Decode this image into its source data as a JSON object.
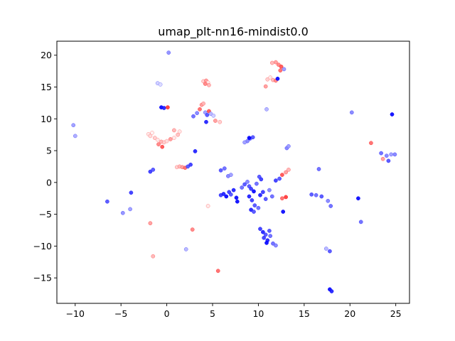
{
  "chart_data": {
    "type": "scatter",
    "title": "umap_plt-nn16-mindist0.0",
    "xlabel": "",
    "ylabel": "",
    "xlim": [
      -12,
      26.5
    ],
    "ylim": [
      -19,
      22.2
    ],
    "xticks": [
      -10,
      -5,
      0,
      5,
      10,
      15,
      20,
      25
    ],
    "yticks": [
      -15,
      -10,
      -5,
      0,
      5,
      10,
      15,
      20
    ],
    "grid": false,
    "legend": "none",
    "color_scale": {
      "low": "#0000ff",
      "mid": "#ffffff",
      "high": "#ff0000"
    },
    "points": [
      {
        "x": -10.2,
        "y": 9.0,
        "c": 0.6
      },
      {
        "x": -10.0,
        "y": 7.3,
        "c": 0.65
      },
      {
        "x": -6.5,
        "y": -3.0,
        "c": 0.3
      },
      {
        "x": -4.8,
        "y": -4.8,
        "c": 0.55
      },
      {
        "x": -4.0,
        "y": -4.2,
        "c": 0.6
      },
      {
        "x": -3.9,
        "y": -1.6,
        "c": 0.2
      },
      {
        "x": -1.8,
        "y": -6.4,
        "c": -0.6
      },
      {
        "x": -1.5,
        "y": -11.6,
        "c": -0.7
      },
      {
        "x": -1.8,
        "y": 1.7,
        "c": 0.2
      },
      {
        "x": -1.5,
        "y": 2.0,
        "c": 0.3
      },
      {
        "x": -1.0,
        "y": 15.6,
        "c": 0.8
      },
      {
        "x": -0.7,
        "y": 15.4,
        "c": 0.85
      },
      {
        "x": -0.6,
        "y": 11.8,
        "c": 0.0
      },
      {
        "x": -0.3,
        "y": 11.7,
        "c": 0.1
      },
      {
        "x": 0.1,
        "y": 11.8,
        "c": -0.2
      },
      {
        "x": 0.2,
        "y": 20.4,
        "c": 0.55
      },
      {
        "x": -2.0,
        "y": 7.6,
        "c": -0.9
      },
      {
        "x": -1.8,
        "y": 7.3,
        "c": -0.85
      },
      {
        "x": -1.6,
        "y": 7.8,
        "c": -0.95
      },
      {
        "x": -1.3,
        "y": 7.0,
        "c": -0.8
      },
      {
        "x": -1.0,
        "y": 6.7,
        "c": -0.9
      },
      {
        "x": -0.6,
        "y": 6.4,
        "c": -0.7
      },
      {
        "x": -0.3,
        "y": 6.3,
        "c": -0.8
      },
      {
        "x": 0.0,
        "y": 6.5,
        "c": -0.85
      },
      {
        "x": 0.4,
        "y": 6.8,
        "c": -0.6
      },
      {
        "x": 0.8,
        "y": 7.0,
        "c": -0.9
      },
      {
        "x": 1.2,
        "y": 7.5,
        "c": -0.75
      },
      {
        "x": 1.4,
        "y": 8.0,
        "c": -0.9
      },
      {
        "x": 0.8,
        "y": 8.2,
        "c": -0.7
      },
      {
        "x": -0.9,
        "y": 6.0,
        "c": -0.5
      },
      {
        "x": -0.5,
        "y": 5.6,
        "c": -0.3
      },
      {
        "x": 1.1,
        "y": 2.4,
        "c": -0.8
      },
      {
        "x": 1.4,
        "y": 2.5,
        "c": -0.7
      },
      {
        "x": 1.7,
        "y": 2.4,
        "c": -0.6
      },
      {
        "x": 2.0,
        "y": 2.3,
        "c": -0.4
      },
      {
        "x": 2.3,
        "y": 2.5,
        "c": 0.3
      },
      {
        "x": 2.6,
        "y": 2.8,
        "c": 0.2
      },
      {
        "x": 3.1,
        "y": 4.9,
        "c": 0.1
      },
      {
        "x": 2.8,
        "y": -7.4,
        "c": -0.5
      },
      {
        "x": 2.1,
        "y": -10.5,
        "c": 0.7
      },
      {
        "x": 5.6,
        "y": -13.9,
        "c": -0.4
      },
      {
        "x": 4.5,
        "y": -3.7,
        "c": -0.9
      },
      {
        "x": 2.9,
        "y": 10.4,
        "c": 0.4
      },
      {
        "x": 3.3,
        "y": 10.9,
        "c": 0.5
      },
      {
        "x": 3.6,
        "y": 11.5,
        "c": -0.4
      },
      {
        "x": 3.8,
        "y": 12.2,
        "c": -0.6
      },
      {
        "x": 4.0,
        "y": 12.4,
        "c": -0.7
      },
      {
        "x": 4.2,
        "y": 11.0,
        "c": 0.6
      },
      {
        "x": 4.4,
        "y": 10.6,
        "c": 0.3
      },
      {
        "x": 4.6,
        "y": 11.2,
        "c": -0.3
      },
      {
        "x": 4.8,
        "y": 10.8,
        "c": 0.7
      },
      {
        "x": 5.1,
        "y": 10.5,
        "c": 0.8
      },
      {
        "x": 4.3,
        "y": 9.5,
        "c": 0.1
      },
      {
        "x": 5.3,
        "y": 9.7,
        "c": -0.6
      },
      {
        "x": 5.8,
        "y": 9.5,
        "c": -0.8
      },
      {
        "x": 4.0,
        "y": 15.9,
        "c": -0.8
      },
      {
        "x": 4.3,
        "y": 16.0,
        "c": -0.6
      },
      {
        "x": 4.5,
        "y": 15.7,
        "c": -0.9
      },
      {
        "x": 4.2,
        "y": 15.5,
        "c": -0.5
      },
      {
        "x": 4.6,
        "y": 15.3,
        "c": -0.7
      },
      {
        "x": 5.9,
        "y": 1.9,
        "c": 0.3
      },
      {
        "x": 6.3,
        "y": 2.2,
        "c": 0.4
      },
      {
        "x": 6.7,
        "y": 1.0,
        "c": 0.5
      },
      {
        "x": 7.0,
        "y": 1.2,
        "c": 0.6
      },
      {
        "x": 5.9,
        "y": -2.0,
        "c": 0.2
      },
      {
        "x": 6.2,
        "y": -1.8,
        "c": 0.1
      },
      {
        "x": 6.5,
        "y": -2.2,
        "c": 0.0
      },
      {
        "x": 6.8,
        "y": -1.5,
        "c": 0.2
      },
      {
        "x": 7.0,
        "y": -1.9,
        "c": 0.3
      },
      {
        "x": 7.3,
        "y": -1.2,
        "c": 0.1
      },
      {
        "x": 7.6,
        "y": -2.4,
        "c": 0.0
      },
      {
        "x": 7.7,
        "y": -3.0,
        "c": 0.0
      },
      {
        "x": 8.2,
        "y": -0.8,
        "c": 0.4
      },
      {
        "x": 8.5,
        "y": -0.3,
        "c": 0.3
      },
      {
        "x": 8.8,
        "y": 0.1,
        "c": 0.5
      },
      {
        "x": 9.0,
        "y": -0.6,
        "c": 0.3
      },
      {
        "x": 9.2,
        "y": -1.0,
        "c": 0.2
      },
      {
        "x": 9.5,
        "y": -1.4,
        "c": 0.0
      },
      {
        "x": 9.8,
        "y": -0.2,
        "c": 0.4
      },
      {
        "x": 10.1,
        "y": 0.9,
        "c": 0.3
      },
      {
        "x": 10.3,
        "y": 0.5,
        "c": 0.2
      },
      {
        "x": 9.0,
        "y": -2.2,
        "c": 0.1
      },
      {
        "x": 9.3,
        "y": -2.8,
        "c": 0.2
      },
      {
        "x": 9.6,
        "y": -3.6,
        "c": 0.3
      },
      {
        "x": 9.2,
        "y": -4.3,
        "c": 0.1
      },
      {
        "x": 9.5,
        "y": -4.6,
        "c": 0.3
      },
      {
        "x": 10.0,
        "y": -4.0,
        "c": 0.4
      },
      {
        "x": 10.2,
        "y": -2.0,
        "c": 0.1
      },
      {
        "x": 10.5,
        "y": -1.5,
        "c": 0.2
      },
      {
        "x": 10.8,
        "y": -2.6,
        "c": 0.3
      },
      {
        "x": 11.2,
        "y": -1.2,
        "c": 0.5
      },
      {
        "x": 11.5,
        "y": -2.2,
        "c": 0.4
      },
      {
        "x": 11.9,
        "y": 0.3,
        "c": 0.2
      },
      {
        "x": 12.3,
        "y": 0.6,
        "c": 0.3
      },
      {
        "x": 12.6,
        "y": 1.2,
        "c": -0.3
      },
      {
        "x": 13.0,
        "y": 1.6,
        "c": -0.6
      },
      {
        "x": 13.3,
        "y": 2.0,
        "c": -0.7
      },
      {
        "x": 12.7,
        "y": -4.6,
        "c": 0.0
      },
      {
        "x": 12.6,
        "y": -2.5,
        "c": -0.4
      },
      {
        "x": 13.0,
        "y": -2.3,
        "c": -0.2
      },
      {
        "x": 10.2,
        "y": -7.3,
        "c": 0.2
      },
      {
        "x": 10.5,
        "y": -7.8,
        "c": 0.1
      },
      {
        "x": 10.8,
        "y": -8.2,
        "c": 0.3
      },
      {
        "x": 10.6,
        "y": -8.7,
        "c": 0.2
      },
      {
        "x": 11.0,
        "y": -9.1,
        "c": 0.1
      },
      {
        "x": 11.3,
        "y": -8.4,
        "c": 0.4
      },
      {
        "x": 11.2,
        "y": -7.6,
        "c": 0.3
      },
      {
        "x": 10.9,
        "y": -9.5,
        "c": 0.0
      },
      {
        "x": 11.6,
        "y": -9.6,
        "c": 0.4
      },
      {
        "x": 11.9,
        "y": -9.9,
        "c": 0.5
      },
      {
        "x": 8.8,
        "y": 6.5,
        "c": 0.5
      },
      {
        "x": 9.1,
        "y": 6.9,
        "c": 0.4
      },
      {
        "x": 9.4,
        "y": 7.1,
        "c": 0.3
      },
      {
        "x": 9.0,
        "y": 7.0,
        "c": 0.0
      },
      {
        "x": 8.5,
        "y": 6.3,
        "c": 0.6
      },
      {
        "x": 10.8,
        "y": 15.1,
        "c": -0.6
      },
      {
        "x": 11.0,
        "y": 16.2,
        "c": -0.8
      },
      {
        "x": 11.3,
        "y": 16.5,
        "c": -0.9
      },
      {
        "x": 11.6,
        "y": 16.1,
        "c": -0.7
      },
      {
        "x": 11.9,
        "y": 16.0,
        "c": -0.5
      },
      {
        "x": 12.1,
        "y": 16.3,
        "c": 0.0
      },
      {
        "x": 11.5,
        "y": 18.8,
        "c": -0.7
      },
      {
        "x": 11.9,
        "y": 18.9,
        "c": -0.6
      },
      {
        "x": 12.2,
        "y": 18.5,
        "c": -0.5
      },
      {
        "x": 12.5,
        "y": 18.2,
        "c": -0.3
      },
      {
        "x": 12.8,
        "y": 17.8,
        "c": 0.6
      },
      {
        "x": 12.4,
        "y": 17.6,
        "c": -0.4
      },
      {
        "x": 10.9,
        "y": 11.5,
        "c": 0.7
      },
      {
        "x": 13.1,
        "y": 5.4,
        "c": 0.5
      },
      {
        "x": 13.3,
        "y": 5.7,
        "c": 0.6
      },
      {
        "x": 15.8,
        "y": -1.9,
        "c": 0.3
      },
      {
        "x": 16.3,
        "y": -2.0,
        "c": 0.4
      },
      {
        "x": 16.6,
        "y": 2.1,
        "c": 0.4
      },
      {
        "x": 16.9,
        "y": -2.2,
        "c": 0.3
      },
      {
        "x": 17.4,
        "y": -10.4,
        "c": 0.7
      },
      {
        "x": 17.8,
        "y": -10.8,
        "c": 0.3
      },
      {
        "x": 17.6,
        "y": -2.9,
        "c": 0.5
      },
      {
        "x": 17.9,
        "y": -3.7,
        "c": 0.4
      },
      {
        "x": 17.8,
        "y": -16.8,
        "c": 0.0
      },
      {
        "x": 18.0,
        "y": -17.1,
        "c": 0.1
      },
      {
        "x": 20.2,
        "y": 11.0,
        "c": 0.5
      },
      {
        "x": 20.9,
        "y": -2.5,
        "c": 0.0
      },
      {
        "x": 21.2,
        "y": -6.2,
        "c": 0.4
      },
      {
        "x": 22.3,
        "y": 6.2,
        "c": -0.4
      },
      {
        "x": 23.4,
        "y": 4.6,
        "c": 0.4
      },
      {
        "x": 23.6,
        "y": 3.7,
        "c": -0.6
      },
      {
        "x": 24.0,
        "y": 4.2,
        "c": 0.5
      },
      {
        "x": 24.2,
        "y": 3.4,
        "c": 0.3
      },
      {
        "x": 24.5,
        "y": 4.4,
        "c": 0.6
      },
      {
        "x": 24.9,
        "y": 4.4,
        "c": 0.5
      },
      {
        "x": 24.6,
        "y": 10.7,
        "c": 0.0
      }
    ]
  }
}
